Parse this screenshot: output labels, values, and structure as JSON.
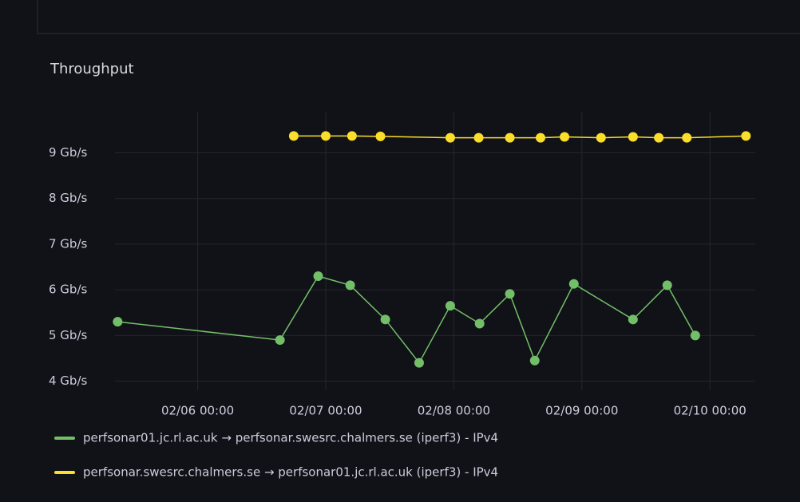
{
  "chart_data": {
    "type": "line",
    "title": "Throughput",
    "xlim": [
      "02/05 08:30",
      "02/10 08:30"
    ],
    "xticks": [
      "02/06 00:00",
      "02/07 00:00",
      "02/08 00:00",
      "02/09 00:00",
      "02/10 00:00"
    ],
    "ylim": [
      3.8,
      9.9
    ],
    "yticks": [
      {
        "value": 4,
        "label": "4 Gb/s"
      },
      {
        "value": 5,
        "label": "5 Gb/s"
      },
      {
        "value": 6,
        "label": "6 Gb/s"
      },
      {
        "value": 7,
        "label": "7 Gb/s"
      },
      {
        "value": 8,
        "label": "8 Gb/s"
      },
      {
        "value": 9,
        "label": "9 Gb/s"
      }
    ],
    "grid": true,
    "series": [
      {
        "name": "perfsonar01.jc.rl.ac.uk → perfsonar.swesrc.chalmers.se (iperf3) - IPv4",
        "color": "#73bf69",
        "x": [
          "02/05 09:00",
          "02/06 15:25",
          "02/06 22:35",
          "02/07 04:35",
          "02/07 11:10",
          "02/07 17:30",
          "02/07 23:20",
          "02/08 04:50",
          "02/08 10:30",
          "02/08 15:10",
          "02/08 22:30",
          "02/09 09:35",
          "02/09 16:00",
          "02/09 21:15"
        ],
        "values": [
          5.3,
          4.9,
          6.3,
          6.1,
          5.35,
          4.4,
          5.65,
          5.26,
          5.91,
          4.45,
          6.13,
          5.35,
          6.1,
          5.0
        ]
      },
      {
        "name": "perfsonar.swesrc.chalmers.se → perfsonar01.jc.rl.ac.uk (iperf3) - IPv4",
        "color": "#fade2a",
        "x": [
          "02/06 18:00",
          "02/07 00:00",
          "02/07 04:55",
          "02/07 10:15",
          "02/07 23:20",
          "02/08 04:40",
          "02/08 10:30",
          "02/08 16:15",
          "02/08 20:45",
          "02/09 03:35",
          "02/09 09:35",
          "02/09 14:25",
          "02/09 19:40",
          "02/10 06:45"
        ],
        "values": [
          9.37,
          9.37,
          9.37,
          9.36,
          9.33,
          9.33,
          9.33,
          9.33,
          9.35,
          9.33,
          9.35,
          9.33,
          9.33,
          9.37
        ]
      }
    ]
  }
}
